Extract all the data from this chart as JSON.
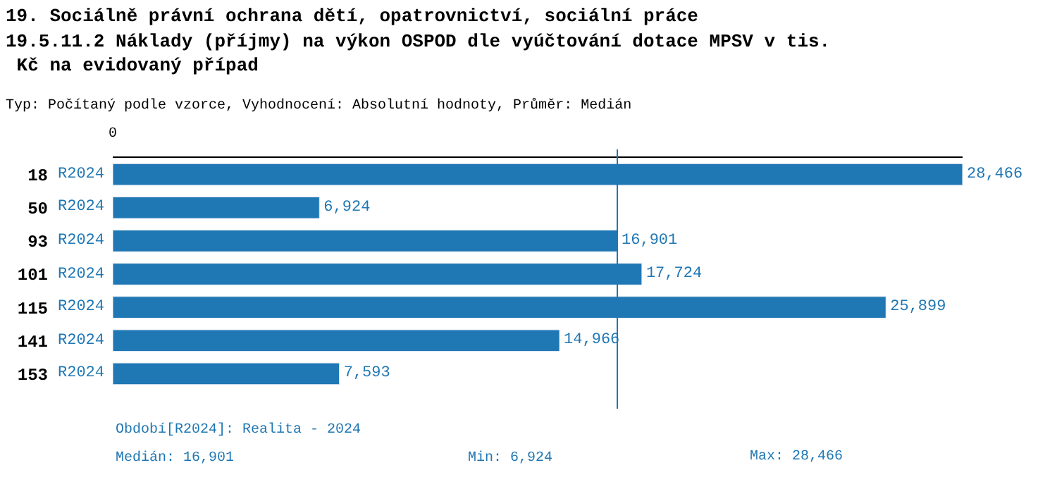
{
  "chart_data": {
    "type": "bar",
    "orientation": "horizontal",
    "title": "19. Sociálně právní ochrana dětí, opatrovnictví, sociální práce",
    "subtitle": "19.5.11.2 Náklady (příjmy) na výkon OSPOD dle vyúčtování dotace MPSV v tis. Kč na evidovaný případ",
    "categories": [
      "18",
      "50",
      "93",
      "101",
      "115",
      "141",
      "153"
    ],
    "series": [
      {
        "name": "R2024",
        "color": "#1f77b4",
        "values": [
          28466,
          6924,
          16901,
          17724,
          25899,
          14966,
          7593
        ],
        "value_labels": [
          "28,466",
          "6,924",
          "16,901",
          "17,724",
          "25,899",
          "14,966",
          "7,593"
        ]
      }
    ],
    "legend": false,
    "ref_lines": [
      {
        "axis": "x",
        "value": 16901,
        "color": "#1f77b4"
      }
    ],
    "annotations": [
      "Typ: Počítaný podle vzorce, Vyhodnocení: Absolutní hodnoty, Průměr: Medián",
      "Období[R2024]: Realita - 2024",
      "Medián: 16,901",
      "Min: 6,924",
      "Max: 28,466",
      "0"
    ]
  }
}
